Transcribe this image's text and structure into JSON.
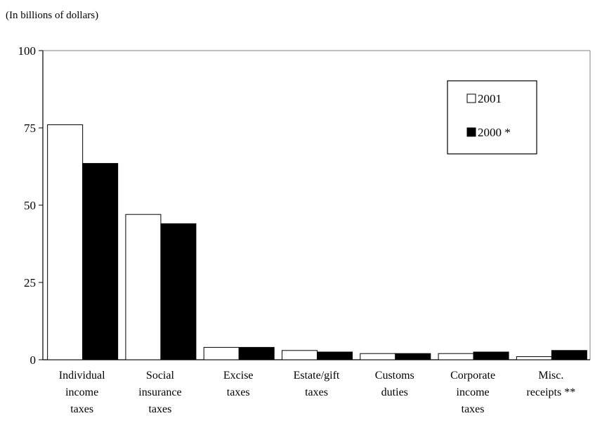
{
  "unit_note": "(In billions of dollars)",
  "chart_data": {
    "type": "bar",
    "title": "",
    "xlabel": "",
    "ylabel": "",
    "ylim": [
      0,
      100
    ],
    "yticks": [
      "0",
      "25",
      "50",
      "75",
      "100"
    ],
    "grid": false,
    "legend_position": "top-right",
    "categories": [
      [
        "Individual",
        "income",
        "taxes"
      ],
      [
        "Social",
        "insurance",
        "taxes"
      ],
      [
        "Excise",
        "taxes"
      ],
      [
        "Estate/gift",
        "taxes"
      ],
      [
        "Customs",
        "duties"
      ],
      [
        "Corporate",
        "income",
        "taxes"
      ],
      [
        "Misc.",
        "receipts **"
      ]
    ],
    "series": [
      {
        "name": "2001",
        "color": "#ffffff",
        "values": [
          76,
          47,
          4,
          3,
          2,
          2,
          1
        ]
      },
      {
        "name": "2000 *",
        "color": "#000000",
        "values": [
          63.5,
          44,
          4,
          2.5,
          2,
          2.5,
          3
        ]
      }
    ]
  }
}
